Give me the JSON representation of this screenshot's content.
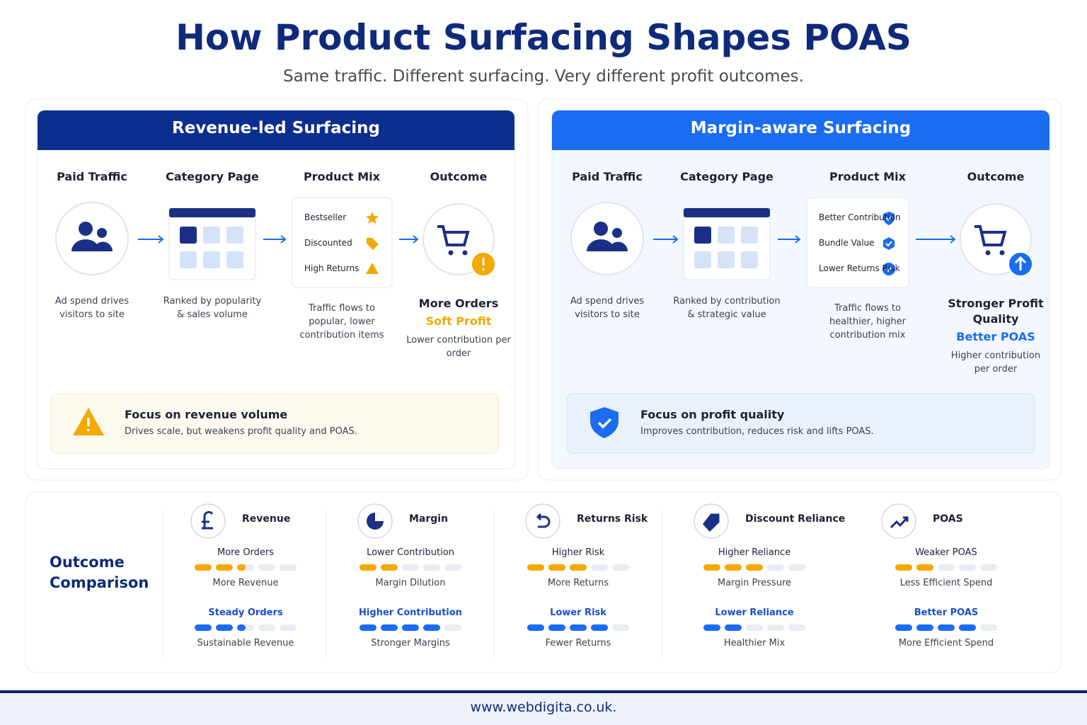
{
  "header": {
    "title": "How Product Surfacing Shapes POAS",
    "subtitle": "Same traffic. Different surfacing. Very different profit outcomes."
  },
  "panels": [
    {
      "title": "Revenue-led Surfacing",
      "steps": [
        {
          "label": "Paid Traffic",
          "caption": "Ad spend drives visitors to site"
        },
        {
          "label": "Category Page",
          "caption": "Ranked by popularity & sales volume"
        },
        {
          "label": "Product Mix",
          "caption": "Traffic flows to popular, lower contribution items"
        },
        {
          "label": "Outcome"
        }
      ],
      "mix_items": [
        "Bestseller",
        "Discounted",
        "High Returns"
      ],
      "outcome": {
        "title": "More Orders",
        "highlight": "Soft Profit",
        "caption": "Lower contribution per order"
      },
      "focus": {
        "title": "Focus on revenue volume",
        "text": "Drives scale, but weakens profit quality and POAS."
      }
    },
    {
      "title": "Margin-aware Surfacing",
      "steps": [
        {
          "label": "Paid Traffic",
          "caption": "Ad spend drives visitors to site"
        },
        {
          "label": "Category Page",
          "caption": "Ranked by contribution & strategic value"
        },
        {
          "label": "Product Mix",
          "caption": "Traffic flows to healthier, higher contribution mix"
        },
        {
          "label": "Outcome"
        }
      ],
      "mix_items": [
        "Better Contribution",
        "Bundle Value",
        "Lower Returns Risk"
      ],
      "outcome": {
        "title": "Stronger Profit Quality",
        "highlight": "Better POAS",
        "caption": "Higher contribution per order"
      },
      "focus": {
        "title": "Focus on profit quality",
        "text": "Improves contribution, reduces risk and lifts POAS."
      }
    }
  ],
  "comparison": {
    "title": "Outcome Comparison",
    "metrics": [
      {
        "name": "Revenue",
        "top": {
          "label": "More Orders",
          "level": 2.5,
          "sublabel": "More Revenue"
        },
        "bottom": {
          "label": "Steady Orders",
          "level": 2.5,
          "sublabel": "Sustainable Revenue"
        }
      },
      {
        "name": "Margin",
        "top": {
          "label": "Lower Contribution",
          "level": 2,
          "sublabel": "Margin Dilution"
        },
        "bottom": {
          "label": "Higher Contribution",
          "level": 4,
          "sublabel": "Stronger Margins"
        }
      },
      {
        "name": "Returns Risk",
        "top": {
          "label": "Higher Risk",
          "level": 3,
          "sublabel": "More Returns"
        },
        "bottom": {
          "label": "Lower Risk",
          "level": 4,
          "sublabel": "Fewer Returns"
        }
      },
      {
        "name": "Discount Reliance",
        "top": {
          "label": "Higher Reliance",
          "level": 3,
          "sublabel": "Margin Pressure"
        },
        "bottom": {
          "label": "Lower Reliance",
          "level": 2,
          "sublabel": "Healthier Mix"
        }
      },
      {
        "name": "POAS",
        "top": {
          "label": "Weaker POAS",
          "level": 2,
          "sublabel": "Less Efficient Spend"
        },
        "bottom": {
          "label": "Better POAS",
          "level": 4,
          "sublabel": "More Efficient Spend"
        }
      }
    ]
  },
  "footer": "www.webdigita.co.uk."
}
